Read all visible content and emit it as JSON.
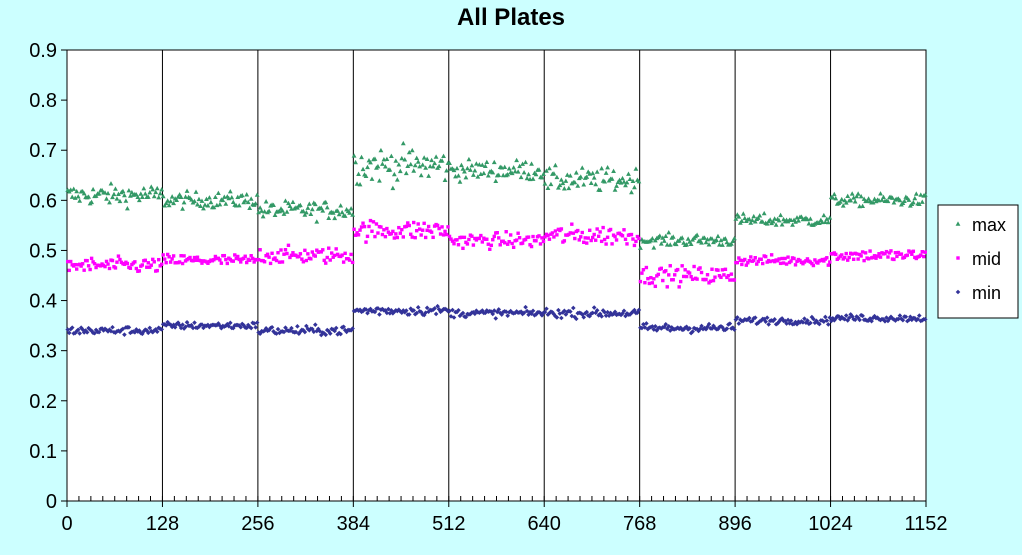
{
  "chart_data": {
    "type": "scatter",
    "title": "All Plates",
    "xlabel": "",
    "ylabel": "",
    "xlim": [
      0,
      1152
    ],
    "ylim": [
      0,
      0.9
    ],
    "x_ticks": [
      "0",
      "128",
      "256",
      "384",
      "512",
      "640",
      "768",
      "896",
      "1024",
      "1152"
    ],
    "y_ticks": [
      "0",
      "0.1",
      "0.2",
      "0.3",
      "0.4",
      "0.5",
      "0.6",
      "0.7",
      "0.8",
      "0.9"
    ],
    "plate_size": 128,
    "vertical_gridlines": true,
    "horizontal_gridlines": false,
    "legend_position": "right",
    "series": [
      {
        "name": "max",
        "color": "#339966",
        "marker": "triangle",
        "plate_levels": [
          0.61,
          0.6,
          0.58,
          0.67,
          0.66,
          0.64,
          0.52,
          0.56,
          0.6
        ],
        "plate_spread": [
          0.02,
          0.016,
          0.018,
          0.035,
          0.02,
          0.024,
          0.012,
          0.012,
          0.012
        ]
      },
      {
        "name": "mid",
        "color": "#ff00ff",
        "marker": "square",
        "plate_levels": [
          0.47,
          0.48,
          0.49,
          0.54,
          0.52,
          0.53,
          0.45,
          0.48,
          0.49
        ],
        "plate_spread": [
          0.015,
          0.012,
          0.016,
          0.02,
          0.015,
          0.02,
          0.018,
          0.01,
          0.012
        ]
      },
      {
        "name": "min",
        "color": "#333399",
        "marker": "diamond",
        "plate_levels": [
          0.34,
          0.35,
          0.34,
          0.38,
          0.375,
          0.375,
          0.345,
          0.36,
          0.365
        ],
        "plate_spread": [
          0.008,
          0.007,
          0.009,
          0.009,
          0.008,
          0.009,
          0.009,
          0.007,
          0.007
        ]
      }
    ]
  }
}
